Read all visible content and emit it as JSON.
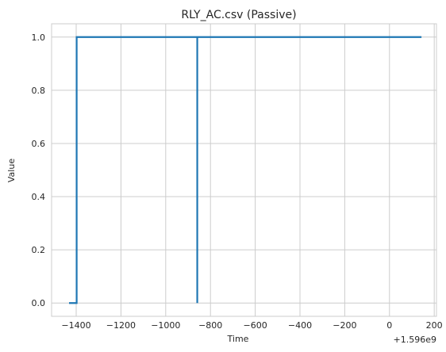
{
  "chart_data": {
    "type": "line",
    "title": "RLY_AC.csv (Passive)",
    "xlabel": "Time",
    "ylabel": "Value",
    "x_offset_label": "+1.596e9",
    "xlim": [
      -1510,
      210
    ],
    "ylim": [
      -0.05,
      1.05
    ],
    "x_ticks": [
      -1400,
      -1200,
      -1000,
      -800,
      -600,
      -400,
      -200,
      0,
      200
    ],
    "x_tick_labels": [
      "−1400",
      "−1200",
      "−1000",
      "−800",
      "−600",
      "−400",
      "−200",
      "0",
      "200"
    ],
    "y_ticks": [
      0.0,
      0.2,
      0.4,
      0.6,
      0.8,
      1.0
    ],
    "y_tick_labels": [
      "0.0",
      "0.2",
      "0.4",
      "0.6",
      "0.8",
      "1.0"
    ],
    "grid": true,
    "series": [
      {
        "color": "#1f77b4",
        "x": [
          -1432,
          -1398,
          -1398,
          -859,
          -859,
          -859,
          143
        ],
        "y": [
          0,
          0,
          1,
          1,
          0,
          1,
          1
        ]
      }
    ]
  }
}
